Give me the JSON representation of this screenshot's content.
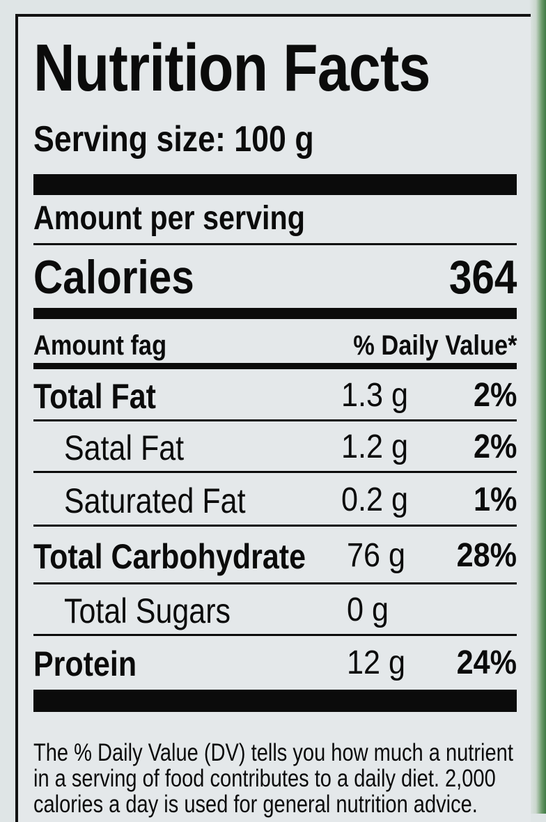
{
  "label": {
    "title": "Nutrition Facts",
    "serving_size": "Serving size: 100 g",
    "amount_per_serving": "Amount per serving",
    "calories_label": "Calories",
    "calories_value": "364",
    "column_header_left": "Amount fag",
    "column_header_right": "% Daily Value*",
    "nutrients": [
      {
        "name": "Total Fat",
        "amount": "1.3 g",
        "dv": "2%"
      },
      {
        "name": "Satal Fat",
        "amount": "1.2 g",
        "dv": "2%"
      },
      {
        "name": "Saturated Fat",
        "amount": "0.2 g",
        "dv": "1%"
      },
      {
        "name": "Total Carbohydrate",
        "amount": "76 g",
        "dv": "28%"
      },
      {
        "name": "Total Sugars",
        "amount": "0 g",
        "dv": ""
      },
      {
        "name": "Protein",
        "amount": "12 g",
        "dv": "24%"
      }
    ],
    "footnote_lines": [
      "The % Daily Value (DV) tells you how much a nutrient",
      "in a serving of food contributes to a daily diet. 2,000",
      "calories a day is used for general nutrition advice."
    ]
  },
  "colors": {
    "ink": "#0b0b0b",
    "label_background": "#e4e8ea",
    "package_green": "#3f7a45"
  }
}
